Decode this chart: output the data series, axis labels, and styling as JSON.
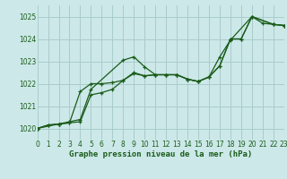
{
  "title": "Graphe pression niveau de la mer (hPa)",
  "bg_color": "#cce8e8",
  "grid_color": "#aacccc",
  "line_color": "#1a5c1a",
  "xmin": 0,
  "xmax": 23,
  "ymin": 1019.5,
  "ymax": 1025.5,
  "yticks": [
    1020,
    1021,
    1022,
    1023,
    1024,
    1025
  ],
  "xticks": [
    0,
    1,
    2,
    3,
    4,
    5,
    6,
    7,
    8,
    9,
    10,
    11,
    12,
    13,
    14,
    15,
    16,
    17,
    18,
    19,
    20,
    21,
    22,
    23
  ],
  "series1": [
    [
      0,
      1020.0
    ],
    [
      2,
      1020.2
    ],
    [
      3,
      1020.3
    ],
    [
      4,
      1020.4
    ],
    [
      5,
      1021.75
    ],
    [
      8,
      1023.05
    ],
    [
      9,
      1023.2
    ],
    [
      10,
      1022.75
    ],
    [
      11,
      1022.4
    ],
    [
      12,
      1022.4
    ],
    [
      13,
      1022.4
    ],
    [
      14,
      1022.2
    ],
    [
      15,
      1022.1
    ],
    [
      16,
      1022.3
    ],
    [
      17,
      1023.2
    ],
    [
      18,
      1023.95
    ],
    [
      20,
      1025.0
    ],
    [
      21,
      1024.7
    ],
    [
      22,
      1024.65
    ],
    [
      23,
      1024.6
    ]
  ],
  "series2": [
    [
      0,
      1020.0
    ],
    [
      1,
      1020.15
    ],
    [
      2,
      1020.2
    ],
    [
      3,
      1020.25
    ],
    [
      4,
      1020.3
    ],
    [
      5,
      1021.5
    ],
    [
      6,
      1021.6
    ],
    [
      7,
      1021.75
    ],
    [
      8,
      1022.15
    ],
    [
      9,
      1022.5
    ],
    [
      10,
      1022.35
    ],
    [
      11,
      1022.4
    ],
    [
      12,
      1022.4
    ],
    [
      13,
      1022.4
    ],
    [
      14,
      1022.2
    ],
    [
      15,
      1022.1
    ],
    [
      16,
      1022.3
    ],
    [
      17,
      1022.8
    ],
    [
      18,
      1024.0
    ],
    [
      19,
      1024.0
    ],
    [
      20,
      1025.0
    ],
    [
      22,
      1024.65
    ],
    [
      23,
      1024.6
    ]
  ],
  "series3": [
    [
      0,
      1020.0
    ],
    [
      1,
      1020.15
    ],
    [
      2,
      1020.2
    ],
    [
      3,
      1020.25
    ],
    [
      4,
      1021.65
    ],
    [
      5,
      1022.0
    ],
    [
      6,
      1022.0
    ],
    [
      7,
      1022.05
    ],
    [
      8,
      1022.15
    ],
    [
      9,
      1022.45
    ],
    [
      10,
      1022.35
    ],
    [
      11,
      1022.4
    ],
    [
      12,
      1022.4
    ],
    [
      13,
      1022.4
    ],
    [
      14,
      1022.2
    ],
    [
      15,
      1022.1
    ],
    [
      16,
      1022.3
    ],
    [
      17,
      1022.8
    ],
    [
      18,
      1024.0
    ],
    [
      19,
      1024.0
    ],
    [
      20,
      1025.0
    ],
    [
      22,
      1024.65
    ],
    [
      23,
      1024.6
    ]
  ]
}
